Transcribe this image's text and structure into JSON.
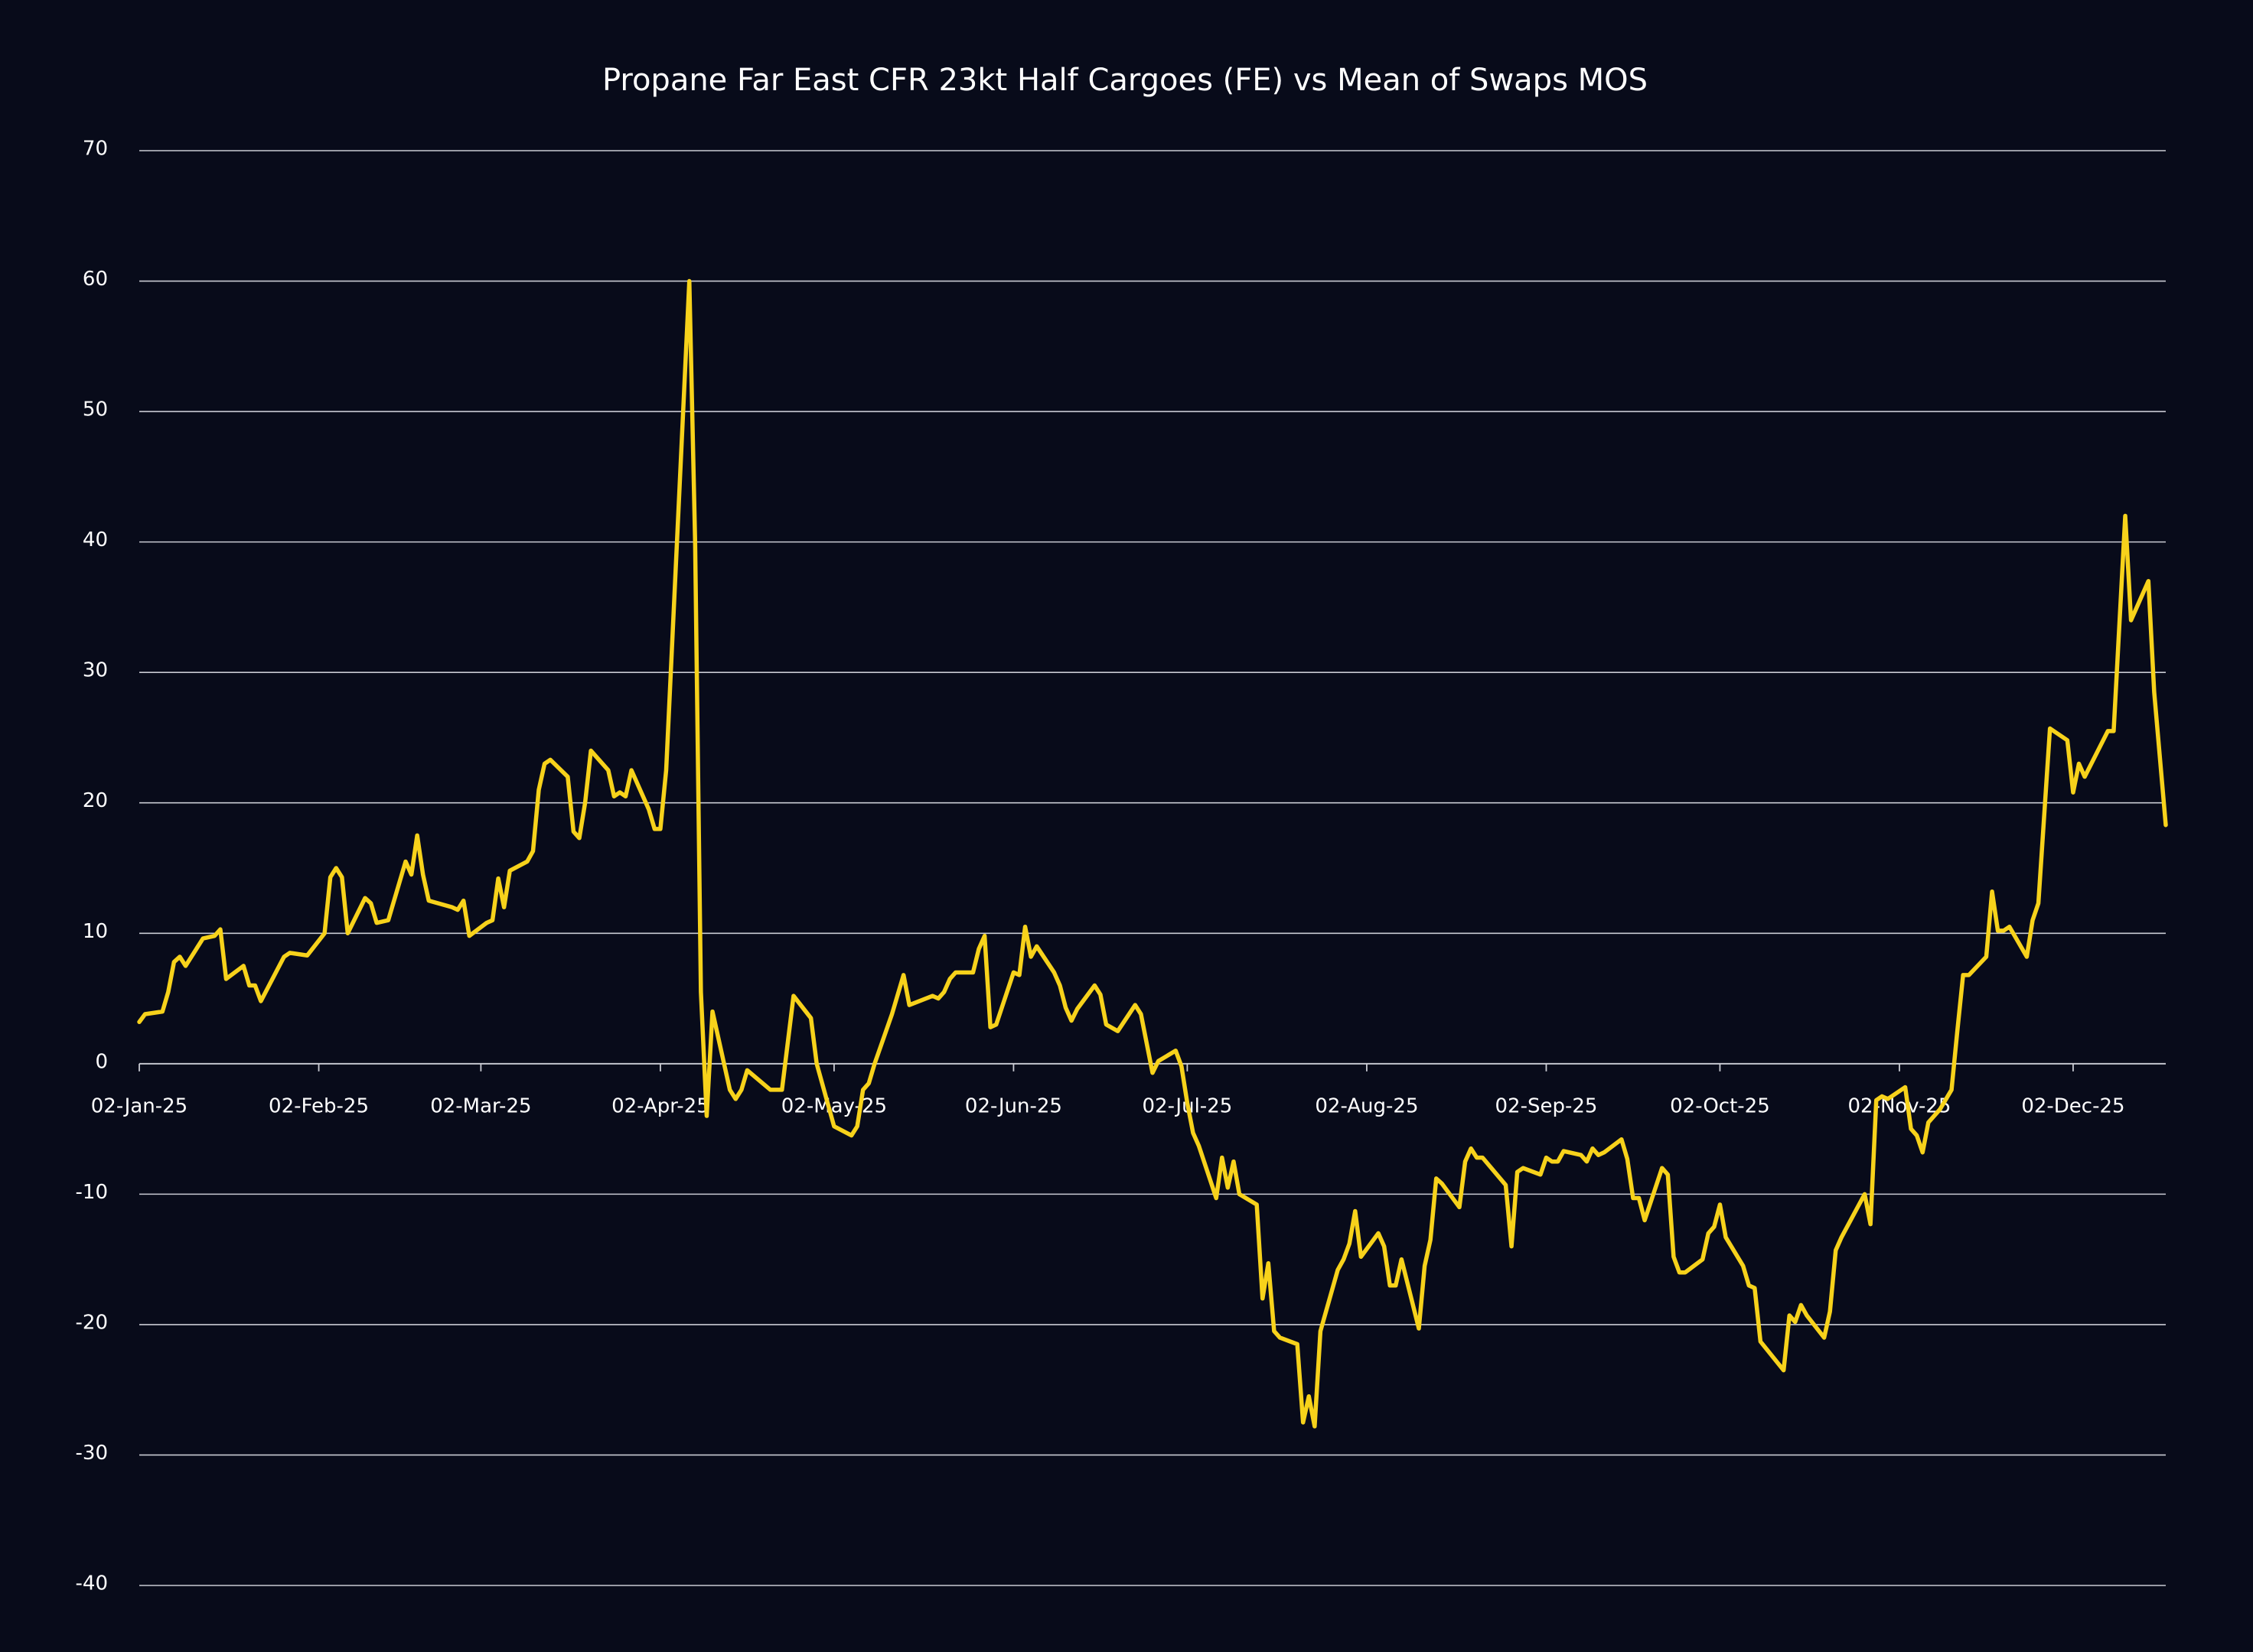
{
  "chart_data": {
    "type": "line",
    "title": "Propane Far East CFR 23kt Half Cargoes (FE) vs Mean of Swaps MOS",
    "x": [
      "2025-01-02",
      "2025-01-03",
      "2025-01-06",
      "2025-01-07",
      "2025-01-08",
      "2025-01-09",
      "2025-01-10",
      "2025-01-13",
      "2025-01-15",
      "2025-01-16",
      "2025-01-17",
      "2025-01-20",
      "2025-01-21",
      "2025-01-22",
      "2025-01-23",
      "2025-01-27",
      "2025-01-28",
      "2025-01-31",
      "2025-02-03",
      "2025-02-04",
      "2025-02-05",
      "2025-02-06",
      "2025-02-07",
      "2025-02-10",
      "2025-02-11",
      "2025-02-12",
      "2025-02-14",
      "2025-02-17",
      "2025-02-18",
      "2025-02-19",
      "2025-02-20",
      "2025-02-21",
      "2025-02-25",
      "2025-02-26",
      "2025-02-27",
      "2025-02-28",
      "2025-03-03",
      "2025-03-04",
      "2025-03-05",
      "2025-03-06",
      "2025-03-07",
      "2025-03-10",
      "2025-03-11",
      "2025-03-12",
      "2025-03-13",
      "2025-03-14",
      "2025-03-17",
      "2025-03-18",
      "2025-03-19",
      "2025-03-20",
      "2025-03-21",
      "2025-03-24",
      "2025-03-25",
      "2025-03-26",
      "2025-03-27",
      "2025-03-28",
      "2025-03-31",
      "2025-04-01",
      "2025-04-02",
      "2025-04-03",
      "2025-04-07",
      "2025-04-08",
      "2025-04-09",
      "2025-04-10",
      "2025-04-11",
      "2025-04-14",
      "2025-04-15",
      "2025-04-16",
      "2025-04-17",
      "2025-04-21",
      "2025-04-23",
      "2025-04-25",
      "2025-04-28",
      "2025-04-29",
      "2025-05-02",
      "2025-05-05",
      "2025-05-06",
      "2025-05-07",
      "2025-05-08",
      "2025-05-09",
      "2025-05-12",
      "2025-05-14",
      "2025-05-15",
      "2025-05-19",
      "2025-05-20",
      "2025-05-21",
      "2025-05-22",
      "2025-05-23",
      "2025-05-26",
      "2025-05-27",
      "2025-05-28",
      "2025-05-29",
      "2025-05-30",
      "2025-06-02",
      "2025-06-03",
      "2025-06-04",
      "2025-06-05",
      "2025-06-06",
      "2025-06-09",
      "2025-06-10",
      "2025-06-11",
      "2025-06-12",
      "2025-06-13",
      "2025-06-16",
      "2025-06-17",
      "2025-06-18",
      "2025-06-20",
      "2025-06-23",
      "2025-06-24",
      "2025-06-26",
      "2025-06-27",
      "2025-06-30",
      "2025-07-01",
      "2025-07-02",
      "2025-07-03",
      "2025-07-04",
      "2025-07-07",
      "2025-07-08",
      "2025-07-09",
      "2025-07-10",
      "2025-07-11",
      "2025-07-14",
      "2025-07-15",
      "2025-07-16",
      "2025-07-17",
      "2025-07-18",
      "2025-07-21",
      "2025-07-22",
      "2025-07-23",
      "2025-07-24",
      "2025-07-25",
      "2025-07-28",
      "2025-07-29",
      "2025-07-30",
      "2025-07-31",
      "2025-08-01",
      "2025-08-04",
      "2025-08-05",
      "2025-08-06",
      "2025-08-07",
      "2025-08-08",
      "2025-08-11",
      "2025-08-12",
      "2025-08-13",
      "2025-08-14",
      "2025-08-15",
      "2025-08-18",
      "2025-08-19",
      "2025-08-20",
      "2025-08-21",
      "2025-08-22",
      "2025-08-26",
      "2025-08-27",
      "2025-08-28",
      "2025-08-29",
      "2025-09-01",
      "2025-09-02",
      "2025-09-03",
      "2025-09-04",
      "2025-09-05",
      "2025-09-08",
      "2025-09-09",
      "2025-09-10",
      "2025-09-11",
      "2025-09-12",
      "2025-09-15",
      "2025-09-16",
      "2025-09-17",
      "2025-09-18",
      "2025-09-19",
      "2025-09-22",
      "2025-09-23",
      "2025-09-24",
      "2025-09-25",
      "2025-09-26",
      "2025-09-29",
      "2025-09-30",
      "2025-10-01",
      "2025-10-02",
      "2025-10-03",
      "2025-10-06",
      "2025-10-07",
      "2025-10-08",
      "2025-10-09",
      "2025-10-13",
      "2025-10-14",
      "2025-10-15",
      "2025-10-16",
      "2025-10-17",
      "2025-10-20",
      "2025-10-21",
      "2025-10-22",
      "2025-10-23",
      "2025-10-27",
      "2025-10-28",
      "2025-10-29",
      "2025-10-30",
      "2025-10-31",
      "2025-11-03",
      "2025-11-04",
      "2025-11-05",
      "2025-11-06",
      "2025-11-07",
      "2025-11-09",
      "2025-11-11",
      "2025-11-12",
      "2025-11-13",
      "2025-11-14",
      "2025-11-17",
      "2025-11-18",
      "2025-11-19",
      "2025-11-20",
      "2025-11-21",
      "2025-11-24",
      "2025-11-25",
      "2025-11-26",
      "2025-11-27",
      "2025-11-28",
      "2025-12-01",
      "2025-12-02",
      "2025-12-03",
      "2025-12-04",
      "2025-12-08",
      "2025-12-09",
      "2025-12-11",
      "2025-12-12",
      "2025-12-15",
      "2025-12-16",
      "2025-12-18"
    ],
    "series": [
      {
        "color": "#f7d21b",
        "values": [
          3.2,
          3.8,
          4.0,
          5.5,
          7.8,
          8.2,
          7.5,
          9.6,
          9.8,
          10.3,
          6.5,
          7.5,
          6.0,
          6.0,
          4.8,
          8.2,
          8.5,
          8.3,
          10.0,
          14.3,
          15.0,
          14.3,
          10.0,
          12.7,
          12.3,
          10.8,
          11.0,
          15.5,
          14.5,
          17.5,
          14.5,
          12.5,
          12.0,
          11.8,
          12.5,
          9.8,
          10.8,
          11.0,
          14.2,
          12.0,
          14.8,
          15.5,
          16.3,
          21.0,
          23.0,
          23.3,
          22.0,
          17.8,
          17.3,
          20.0,
          24.0,
          22.5,
          20.5,
          20.8,
          20.5,
          22.5,
          19.5,
          18.0,
          18.0,
          22.5,
          60.0,
          40.0,
          5.5,
          -4.0,
          4.0,
          -2.0,
          -2.7,
          -2.0,
          -0.5,
          -2.0,
          -2.0,
          5.2,
          3.5,
          0.0,
          -4.8,
          -5.5,
          -4.8,
          -2.0,
          -1.5,
          0.0,
          3.8,
          6.8,
          4.5,
          5.2,
          5.0,
          5.5,
          6.5,
          7.0,
          7.0,
          8.8,
          9.8,
          2.8,
          3.0,
          7.0,
          6.8,
          10.5,
          8.2,
          9.0,
          7.0,
          6.0,
          4.3,
          3.3,
          4.2,
          6.0,
          5.3,
          3.0,
          2.5,
          4.5,
          3.8,
          -0.7,
          0.2,
          1.0,
          -0.2,
          -3.0,
          -5.3,
          -6.3,
          -10.3,
          -7.2,
          -9.5,
          -7.5,
          -10.0,
          -10.8,
          -18.0,
          -15.3,
          -20.5,
          -21.0,
          -21.5,
          -27.5,
          -25.5,
          -27.8,
          -20.5,
          -15.8,
          -15.0,
          -13.8,
          -11.3,
          -14.8,
          -13.0,
          -14.0,
          -17.0,
          -17.0,
          -15.0,
          -20.3,
          -15.5,
          -13.5,
          -8.8,
          -9.2,
          -11.0,
          -7.5,
          -6.5,
          -7.2,
          -7.2,
          -9.3,
          -14.0,
          -8.3,
          -8.0,
          -8.5,
          -7.2,
          -7.5,
          -7.5,
          -6.7,
          -7.0,
          -7.5,
          -6.5,
          -7.0,
          -6.8,
          -5.8,
          -7.3,
          -10.3,
          -10.3,
          -12.0,
          -8.0,
          -8.5,
          -14.8,
          -16.0,
          -16.0,
          -15.0,
          -13.0,
          -12.5,
          -10.8,
          -13.3,
          -15.5,
          -17.0,
          -17.2,
          -21.3,
          -23.5,
          -19.3,
          -19.8,
          -18.5,
          -19.3,
          -21.0,
          -19.0,
          -14.3,
          -13.3,
          -10.0,
          -12.3,
          -2.8,
          -2.5,
          -2.7,
          -1.8,
          -5.0,
          -5.5,
          -6.8,
          -4.5,
          -3.5,
          -2.0,
          2.5,
          6.8,
          6.8,
          8.2,
          13.2,
          10.2,
          10.2,
          10.5,
          8.2,
          11.0,
          12.3,
          19.0,
          25.7,
          24.8,
          20.8,
          23.0,
          22.0,
          25.5,
          25.5,
          42.0,
          34.0,
          37.0,
          28.5,
          18.3
        ]
      }
    ],
    "xlim": [
      "2025-01-02",
      "2025-12-18"
    ],
    "xticks": [
      {
        "value": "2025-01-02",
        "label": "02-Jan-25"
      },
      {
        "value": "2025-02-02",
        "label": "02-Feb-25"
      },
      {
        "value": "2025-03-02",
        "label": "02-Mar-25"
      },
      {
        "value": "2025-04-02",
        "label": "02-Apr-25"
      },
      {
        "value": "2025-05-02",
        "label": "02-May-25"
      },
      {
        "value": "2025-06-02",
        "label": "02-Jun-25"
      },
      {
        "value": "2025-07-02",
        "label": "02-Jul-25"
      },
      {
        "value": "2025-08-02",
        "label": "02-Aug-25"
      },
      {
        "value": "2025-09-02",
        "label": "02-Sep-25"
      },
      {
        "value": "2025-10-02",
        "label": "02-Oct-25"
      },
      {
        "value": "2025-11-02",
        "label": "02-Nov-25"
      },
      {
        "value": "2025-12-02",
        "label": "02-Dec-25"
      }
    ],
    "ylim": [
      -40,
      70
    ],
    "yticks": [
      -40,
      -30,
      -20,
      -10,
      0,
      10,
      20,
      30,
      40,
      50,
      60,
      70
    ],
    "grid": true
  }
}
